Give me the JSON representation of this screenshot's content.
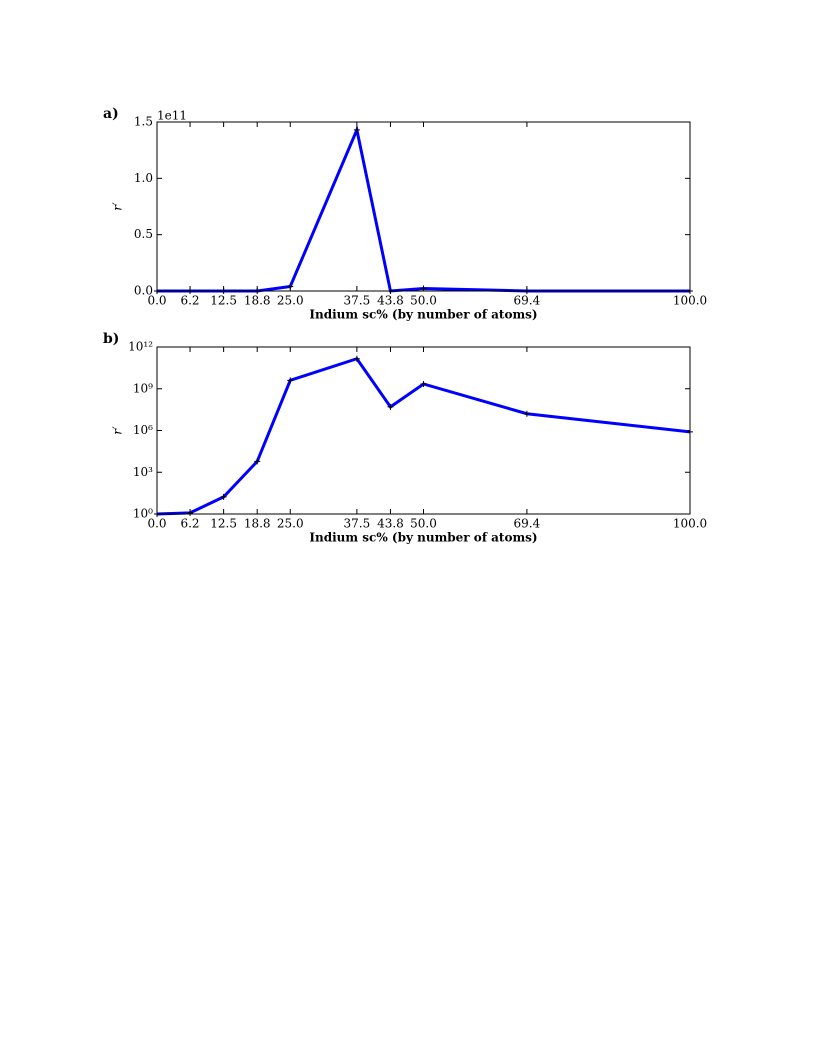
{
  "chart_data": [
    {
      "type": "line",
      "panel_label": "a)",
      "offset_text": "1e11",
      "xlabel": "Indium sc% (by number of atoms)",
      "ylabel": "r′",
      "log_y": false,
      "color": "#0000ff",
      "x": [
        0.0,
        6.2,
        12.5,
        18.8,
        25.0,
        37.5,
        43.8,
        50.0,
        69.4,
        100.0
      ],
      "values": [
        1,
        1.2,
        17,
        6000,
        4000000000,
        143000000000,
        50000000,
        2200000000,
        16000000,
        800000
      ],
      "xlim": [
        0,
        100
      ],
      "ylim": [
        0,
        150000000000
      ],
      "xticks": [
        {
          "value": 0,
          "label": "0.0"
        },
        {
          "value": 6.2,
          "label": "6.2"
        },
        {
          "value": 12.5,
          "label": "12.5"
        },
        {
          "value": 18.8,
          "label": "18.8"
        },
        {
          "value": 25,
          "label": "25.0"
        },
        {
          "value": 37.5,
          "label": "37.5"
        },
        {
          "value": 43.8,
          "label": "43.8"
        },
        {
          "value": 50,
          "label": "50.0"
        },
        {
          "value": 69.4,
          "label": "69.4"
        },
        {
          "value": 100,
          "label": "100.0"
        }
      ],
      "yticks": [
        {
          "value": 0,
          "label": "0.0"
        },
        {
          "value": 50000000000,
          "label": "0.5"
        },
        {
          "value": 100000000000,
          "label": "1.0"
        },
        {
          "value": 150000000000,
          "label": "1.5"
        }
      ]
    },
    {
      "type": "line",
      "panel_label": "b)",
      "xlabel": "Indium sc% (by number of atoms)",
      "ylabel": "r′",
      "log_y": true,
      "color": "#0000ff",
      "x": [
        0.0,
        6.2,
        12.5,
        18.8,
        25.0,
        37.5,
        43.8,
        50.0,
        69.4,
        100.0
      ],
      "values": [
        1,
        1.2,
        17,
        6000,
        4000000000,
        143000000000,
        50000000,
        2200000000,
        16000000,
        800000
      ],
      "xlim": [
        0,
        100
      ],
      "ylim": [
        1,
        1000000000000
      ],
      "xticks": [
        {
          "value": 0,
          "label": "0.0"
        },
        {
          "value": 6.2,
          "label": "6.2"
        },
        {
          "value": 12.5,
          "label": "12.5"
        },
        {
          "value": 18.8,
          "label": "18.8"
        },
        {
          "value": 25,
          "label": "25.0"
        },
        {
          "value": 37.5,
          "label": "37.5"
        },
        {
          "value": 43.8,
          "label": "43.8"
        },
        {
          "value": 50,
          "label": "50.0"
        },
        {
          "value": 69.4,
          "label": "69.4"
        },
        {
          "value": 100,
          "label": "100.0"
        }
      ],
      "yticks": [
        {
          "value": 1,
          "label": "10⁰"
        },
        {
          "value": 1000,
          "label": "10³"
        },
        {
          "value": 1000000,
          "label": "10⁶"
        },
        {
          "value": 1000000000,
          "label": "10⁹"
        },
        {
          "value": 1000000000000,
          "label": "10¹²"
        }
      ]
    }
  ]
}
